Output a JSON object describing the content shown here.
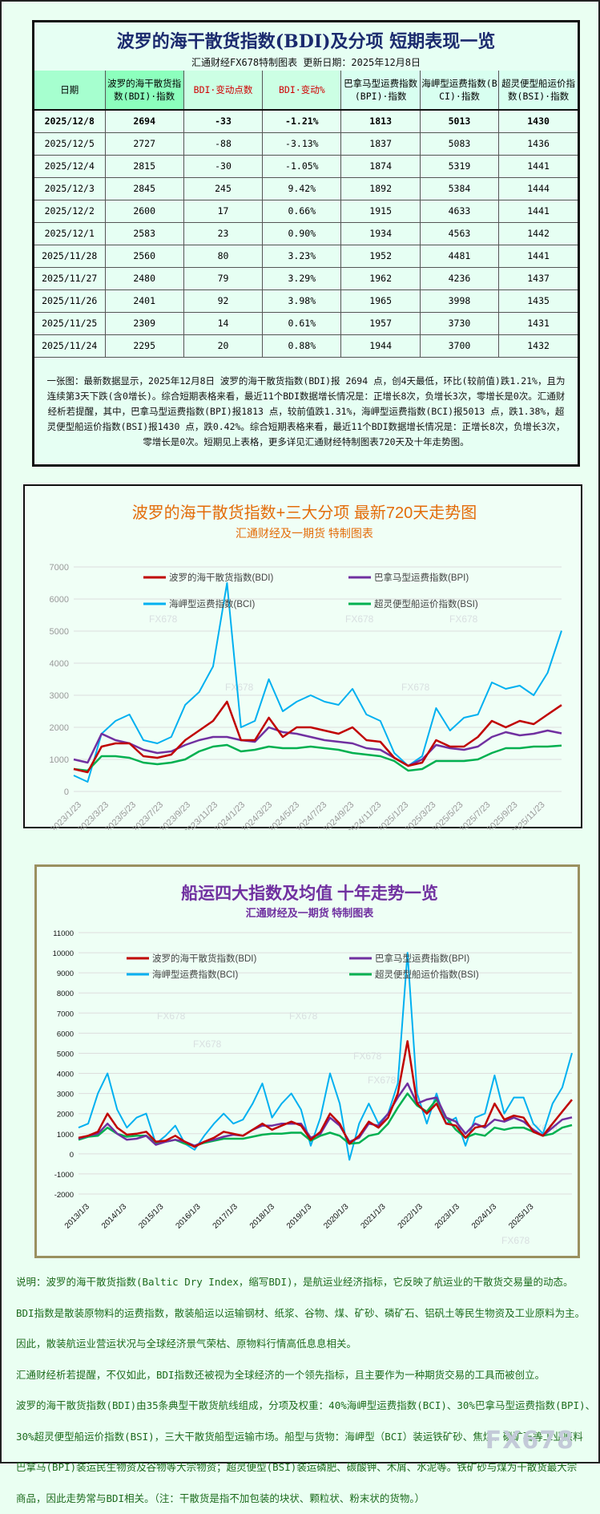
{
  "table_panel": {
    "title": "波罗的海干散货指数(BDI)及分项 短期表现一览",
    "subtitle": "汇通财经FX678特制图表    更新日期：2025年12月8日",
    "headers": [
      "日期",
      "波罗的海干散货指数(BDI)·指数",
      "BDI·变动点数",
      "BDI·变动%",
      "巴拿马型运费指数(BPI)·指数",
      "海岬型运费指数(BCI)·指数",
      "超灵便型船运价指数(BSI)·指数"
    ],
    "rows": [
      [
        "2025/12/8",
        "2694",
        "-33",
        "-1.21%",
        "1813",
        "5013",
        "1430"
      ],
      [
        "2025/12/5",
        "2727",
        "-88",
        "-3.13%",
        "1837",
        "5083",
        "1436"
      ],
      [
        "2025/12/4",
        "2815",
        "-30",
        "-1.05%",
        "1874",
        "5319",
        "1441"
      ],
      [
        "2025/12/3",
        "2845",
        "245",
        "9.42%",
        "1892",
        "5384",
        "1444"
      ],
      [
        "2025/12/2",
        "2600",
        "17",
        "0.66%",
        "1915",
        "4633",
        "1441"
      ],
      [
        "2025/12/1",
        "2583",
        "23",
        "0.90%",
        "1934",
        "4563",
        "1442"
      ],
      [
        "2025/11/28",
        "2560",
        "80",
        "3.23%",
        "1952",
        "4481",
        "1441"
      ],
      [
        "2025/11/27",
        "2480",
        "79",
        "3.29%",
        "1962",
        "4236",
        "1437"
      ],
      [
        "2025/11/26",
        "2401",
        "92",
        "3.98%",
        "1965",
        "3998",
        "1435"
      ],
      [
        "2025/11/25",
        "2309",
        "14",
        "0.61%",
        "1957",
        "3730",
        "1431"
      ],
      [
        "2025/11/24",
        "2295",
        "20",
        "0.88%",
        "1944",
        "3700",
        "1432"
      ]
    ],
    "summary": "一张图：最新数据显示，2025年12月8日 波罗的海干散货指数(BDI)报 2694 点，创4天最低，环比(较前值)跌1.21%，且为连续第3天下跌(含0增长)。综合短期表格来看，最近11个BDI数据增长情况是：正增长8次，负增长3次，零增长是0次。汇通财经析若提醒，其中，巴拿马型运费指数(BPI)报1813 点，较前值跌1.31%，海岬型运费指数(BCI)报5013 点，跌1.38%，超灵便型船运价指数(BSI)报1430 点，跌0.42%。综合短期表格来看，最近11个BDI数据增长情况是：正增长8次，负增长3次，零增长是0次。短期见上表格，更多详见汇通财经特制图表720天及十年走势图。"
  },
  "colors": {
    "BDI": "#c00000",
    "BPI": "#7030a0",
    "BCI": "#00b0f0",
    "BSI": "#00b050"
  },
  "chart_data": [
    {
      "type": "line",
      "title": "波罗的海干散货指数+三大分项  最新720天走势图",
      "subtitle": "汇通财经及一期货  特制图表",
      "watermark": "FX678",
      "ylim": [
        0,
        7000
      ],
      "yticks": [
        0,
        1000,
        2000,
        3000,
        4000,
        5000,
        6000,
        7000
      ],
      "grid": true,
      "legend": "top",
      "xtick_labels": [
        "2023/1/23",
        "2023/3/23",
        "2023/5/23",
        "2023/7/23",
        "2023/9/23",
        "2023/11/23",
        "2024/1/23",
        "2024/3/23",
        "2024/5/23",
        "2024/7/23",
        "2024/9/23",
        "2024/11/23",
        "2025/1/23",
        "2025/3/23",
        "2025/5/23",
        "2025/7/23",
        "2025/9/23",
        "2025/11/23"
      ],
      "x_range": [
        "2023/1/23",
        "2025/12/8"
      ],
      "series": [
        {
          "name": "波罗的海干散货指数(BDI)",
          "key": "BDI",
          "values": [
            700,
            600,
            1400,
            1500,
            1500,
            1100,
            1050,
            1150,
            1600,
            1900,
            2200,
            2800,
            1600,
            1600,
            2300,
            1700,
            2000,
            2000,
            1900,
            1800,
            2000,
            1600,
            1550,
            1050,
            800,
            900,
            1600,
            1400,
            1400,
            1700,
            2200,
            2000,
            2200,
            2100,
            2400,
            2694
          ]
        },
        {
          "name": "巴拿马型运费指数(BPI)",
          "key": "BPI",
          "values": [
            1000,
            900,
            1800,
            1600,
            1500,
            1300,
            1200,
            1250,
            1450,
            1600,
            1700,
            1700,
            1600,
            1550,
            2000,
            1850,
            1800,
            1700,
            1600,
            1550,
            1500,
            1350,
            1300,
            1050,
            800,
            1000,
            1450,
            1350,
            1300,
            1400,
            1700,
            1850,
            1750,
            1800,
            1900,
            1813
          ]
        },
        {
          "name": "海岬型运费指数(BCI)",
          "key": "BCI",
          "values": [
            500,
            300,
            1800,
            2200,
            2400,
            1600,
            1500,
            1700,
            2700,
            3100,
            3900,
            6500,
            2000,
            2200,
            3500,
            2500,
            2800,
            3000,
            2800,
            2700,
            3200,
            2400,
            2200,
            1200,
            800,
            1100,
            2600,
            1900,
            2300,
            2400,
            3400,
            3200,
            3300,
            3000,
            3700,
            5013
          ]
        },
        {
          "name": "超灵便型船运价指数(BSI)",
          "key": "BSI",
          "values": [
            700,
            650,
            1100,
            1100,
            1050,
            900,
            850,
            900,
            1000,
            1250,
            1400,
            1450,
            1250,
            1300,
            1400,
            1350,
            1350,
            1400,
            1350,
            1300,
            1200,
            1150,
            1100,
            950,
            650,
            700,
            950,
            950,
            950,
            1000,
            1200,
            1350,
            1350,
            1400,
            1400,
            1430
          ]
        }
      ]
    },
    {
      "type": "line",
      "title": "船运四大指数及均值 十年走势一览",
      "subtitle": "汇通财经及一期货 特制图表",
      "watermark": "FX678",
      "ylim": [
        -2000,
        11000
      ],
      "yticks": [
        -2000,
        -1000,
        0,
        1000,
        2000,
        3000,
        4000,
        5000,
        6000,
        7000,
        8000,
        9000,
        10000,
        11000
      ],
      "grid": true,
      "legend": "top",
      "xtick_labels": [
        "2013/1/3",
        "2014/1/3",
        "2015/1/3",
        "2016/1/3",
        "2017/1/3",
        "2018/1/3",
        "2019/1/3",
        "2020/1/3",
        "2021/1/3",
        "2022/1/3",
        "2023/1/3",
        "2024/1/3",
        "2025/1/3"
      ],
      "x_range": [
        "2013/1/3",
        "2025/12/8"
      ],
      "series": [
        {
          "name": "波罗的海干散货指数(BDI)",
          "key": "BDI",
          "values": [
            800,
            900,
            1100,
            2000,
            1300,
            950,
            1000,
            1100,
            600,
            650,
            900,
            600,
            350,
            600,
            800,
            1100,
            1000,
            900,
            1200,
            1500,
            1200,
            1400,
            1600,
            1400,
            700,
            1100,
            2000,
            1500,
            500,
            900,
            1600,
            1300,
            1800,
            3000,
            5600,
            2500,
            2000,
            2500,
            1500,
            1400,
            800,
            1300,
            1400,
            2500,
            1700,
            1900,
            1800,
            1100,
            900,
            1500,
            2100,
            2694
          ]
        },
        {
          "name": "巴拿马型运费指数(BPI)",
          "key": "BPI",
          "values": [
            750,
            900,
            1000,
            1500,
            1000,
            700,
            750,
            900,
            450,
            600,
            700,
            600,
            400,
            600,
            700,
            850,
            950,
            900,
            1200,
            1400,
            1400,
            1500,
            1500,
            1500,
            800,
            1000,
            1800,
            1400,
            600,
            800,
            1500,
            1400,
            2000,
            2800,
            3500,
            2500,
            2700,
            2800,
            1800,
            1600,
            1000,
            1500,
            1300,
            1700,
            1600,
            1800,
            1600,
            1200,
            900,
            1300,
            1700,
            1813
          ]
        },
        {
          "name": "海岬型运费指数(BCI)",
          "key": "BCI",
          "values": [
            1300,
            1500,
            3000,
            4000,
            2200,
            1300,
            1800,
            2000,
            500,
            900,
            1400,
            500,
            200,
            900,
            1500,
            2000,
            1500,
            1700,
            2500,
            3500,
            1800,
            2500,
            3000,
            2200,
            400,
            1800,
            4000,
            2500,
            -300,
            1500,
            2500,
            1500,
            2000,
            3500,
            10000,
            3000,
            1500,
            3000,
            1500,
            1800,
            400,
            1800,
            2000,
            3900,
            2000,
            2800,
            2800,
            1500,
            1000,
            2500,
            3300,
            5013
          ]
        },
        {
          "name": "超灵便型船运价指数(BSI)",
          "key": "BSI",
          "values": [
            700,
            850,
            900,
            1300,
            1000,
            850,
            900,
            900,
            550,
            600,
            700,
            500,
            400,
            550,
            650,
            750,
            750,
            750,
            850,
            950,
            1000,
            1000,
            1050,
            1050,
            650,
            900,
            1050,
            900,
            500,
            550,
            900,
            1000,
            1500,
            2300,
            3000,
            2400,
            2100,
            2700,
            1800,
            1200,
            800,
            1000,
            900,
            1300,
            1200,
            1300,
            1300,
            1100,
            900,
            1000,
            1300,
            1430
          ]
        }
      ]
    }
  ],
  "explanation": [
    "说明：波罗的海干散货指数(Baltic Dry Index，缩写BDI)，是航运业经济指标，它反映了航运业的干散货交易量的动态。",
    "BDI指数是散装原物料的运费指数，散装船运以运输钢材、纸浆、谷物、煤、矿砂、磷矿石、铝矾土等民生物资及工业原料为主。",
    "因此，散装航运业营运状况与全球经济景气荣枯、原物料行情高低息息相关。",
    "汇通财经析若提醒，不仅如此，BDI指数还被视为全球经济的一个领先指标，且主要作为一种期货交易的工具而被创立。",
    "波罗的海干散货指数(BDI)由35条典型干散货航线组成，分项及权重：40%海岬型运费指数(BCI)、30%巴拿马型运费指数(BPI)、",
    "30%超灵便型船运价指数(BSI)，三大干散货船型运输市场。船型与货物：海岬型（BCI）装运铁矿砂、焦煤、磷矿石等工业原料",
    "巴拿马(BPI)装运民生物资及谷物等大宗物资；超灵便型(BSI)装运磷肥、碳酸钾、木屑、水泥等。铁矿砂与煤为干散货最大宗",
    "商品，因此走势常与BDI相关。（注：干散货是指不加包装的块状、颗粒状、粉末状的货物。）"
  ],
  "watermark": "FX678"
}
